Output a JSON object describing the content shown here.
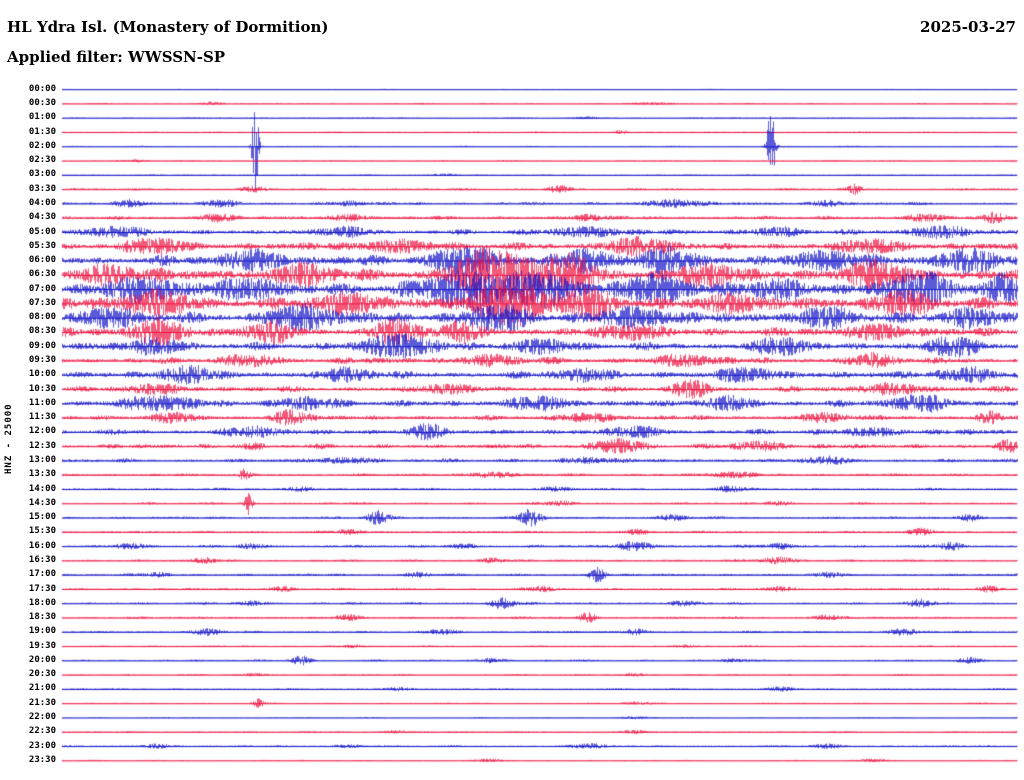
{
  "header": {
    "title": "HL Ydra Isl. (Monastery of Dormition)",
    "date": "2025-03-27",
    "filter_label": "Applied filter: WWSSN-SP"
  },
  "axis": {
    "left_label": "HNZ - 25000"
  },
  "chart_data": {
    "type": "line",
    "subtype": "helicorder-drum-plot",
    "row_minutes": 30,
    "colors": {
      "blue": "#1414c8",
      "red": "#ee1240"
    },
    "rows": [
      {
        "t": "00:00",
        "c": "b",
        "a": 0.35,
        "bursts": []
      },
      {
        "t": "00:30",
        "c": "r",
        "a": 0.6,
        "bursts": [
          [
            0.155,
            0.008,
            1.5
          ],
          [
            0.62,
            0.015,
            1.2
          ]
        ]
      },
      {
        "t": "01:00",
        "c": "b",
        "a": 0.45,
        "bursts": [
          [
            0.55,
            0.01,
            1
          ]
        ]
      },
      {
        "t": "01:30",
        "c": "r",
        "a": 0.5,
        "bursts": [
          [
            0.585,
            0.004,
            2.5
          ]
        ]
      },
      {
        "t": "02:00",
        "c": "b",
        "a": 0.6,
        "bursts": [
          [
            0.202,
            0.0025,
            45
          ],
          [
            0.742,
            0.003,
            38
          ]
        ]
      },
      {
        "t": "02:30",
        "c": "r",
        "a": 0.5,
        "bursts": [
          [
            0.08,
            0.006,
            1.5
          ]
        ]
      },
      {
        "t": "03:00",
        "c": "b",
        "a": 0.55,
        "bursts": [
          [
            0.4,
            0.01,
            1.2
          ]
        ]
      },
      {
        "t": "03:30",
        "c": "r",
        "a": 1.1,
        "bursts": [
          [
            0.2,
            0.01,
            2.5
          ],
          [
            0.52,
            0.008,
            4
          ],
          [
            0.83,
            0.005,
            5
          ]
        ]
      },
      {
        "t": "04:00",
        "c": "b",
        "a": 1.5,
        "bursts": [
          [
            0.07,
            0.01,
            4
          ],
          [
            0.17,
            0.012,
            3.5
          ],
          [
            0.3,
            0.01,
            2.5
          ],
          [
            0.64,
            0.02,
            4
          ],
          [
            0.8,
            0.012,
            3
          ]
        ]
      },
      {
        "t": "04:30",
        "c": "r",
        "a": 1.8,
        "bursts": [
          [
            0.16,
            0.012,
            4
          ],
          [
            0.3,
            0.012,
            3.5
          ],
          [
            0.55,
            0.012,
            3
          ],
          [
            0.9,
            0.012,
            4
          ],
          [
            0.975,
            0.008,
            5
          ]
        ]
      },
      {
        "t": "05:00",
        "c": "b",
        "a": 2.6,
        "bursts": [
          [
            0.05,
            0.02,
            5
          ],
          [
            0.3,
            0.02,
            4
          ],
          [
            0.55,
            0.025,
            5
          ],
          [
            0.75,
            0.02,
            4
          ],
          [
            0.92,
            0.02,
            6
          ]
        ]
      },
      {
        "t": "05:30",
        "c": "r",
        "a": 3.8,
        "bursts": [
          [
            0.1,
            0.02,
            7
          ],
          [
            0.35,
            0.025,
            6
          ],
          [
            0.6,
            0.025,
            7
          ],
          [
            0.85,
            0.02,
            6
          ]
        ]
      },
      {
        "t": "06:00",
        "c": "b",
        "a": 5,
        "bursts": [
          [
            0.2,
            0.02,
            9
          ],
          [
            0.42,
            0.025,
            13
          ],
          [
            0.55,
            0.02,
            10
          ],
          [
            0.63,
            0.018,
            12
          ],
          [
            0.8,
            0.025,
            9
          ],
          [
            0.95,
            0.02,
            11
          ]
        ]
      },
      {
        "t": "06:30",
        "c": "r",
        "a": 6,
        "bursts": [
          [
            0.05,
            0.02,
            9
          ],
          [
            0.25,
            0.02,
            9
          ],
          [
            0.45,
            0.03,
            24
          ],
          [
            0.53,
            0.022,
            18
          ],
          [
            0.68,
            0.02,
            10
          ],
          [
            0.85,
            0.025,
            11
          ]
        ]
      },
      {
        "t": "07:00",
        "c": "b",
        "a": 6,
        "bursts": [
          [
            0.08,
            0.025,
            11
          ],
          [
            0.2,
            0.025,
            9
          ],
          [
            0.42,
            0.03,
            17
          ],
          [
            0.5,
            0.025,
            14
          ],
          [
            0.62,
            0.025,
            13
          ],
          [
            0.75,
            0.02,
            9
          ],
          [
            0.9,
            0.025,
            13
          ],
          [
            0.985,
            0.012,
            15
          ]
        ]
      },
      {
        "t": "07:30",
        "c": "r",
        "a": 5.8,
        "bursts": [
          [
            0.1,
            0.025,
            11
          ],
          [
            0.3,
            0.025,
            9
          ],
          [
            0.47,
            0.025,
            22
          ],
          [
            0.55,
            0.02,
            13
          ],
          [
            0.7,
            0.02,
            9
          ],
          [
            0.88,
            0.02,
            11
          ]
        ]
      },
      {
        "t": "08:00",
        "c": "b",
        "a": 5.2,
        "bursts": [
          [
            0.05,
            0.02,
            9
          ],
          [
            0.25,
            0.025,
            11
          ],
          [
            0.45,
            0.025,
            11
          ],
          [
            0.6,
            0.025,
            9
          ],
          [
            0.8,
            0.02,
            9
          ],
          [
            0.95,
            0.02,
            9
          ]
        ]
      },
      {
        "t": "08:30",
        "c": "r",
        "a": 4.4,
        "bursts": [
          [
            0.1,
            0.018,
            13
          ],
          [
            0.22,
            0.018,
            9
          ],
          [
            0.35,
            0.018,
            11
          ],
          [
            0.42,
            0.015,
            9
          ],
          [
            0.6,
            0.02,
            7
          ],
          [
            0.85,
            0.02,
            7
          ]
        ]
      },
      {
        "t": "09:00",
        "c": "b",
        "a": 3.9,
        "bursts": [
          [
            0.1,
            0.02,
            7
          ],
          [
            0.35,
            0.025,
            11
          ],
          [
            0.5,
            0.02,
            7
          ],
          [
            0.75,
            0.02,
            7
          ],
          [
            0.93,
            0.018,
            9
          ]
        ]
      },
      {
        "t": "09:30",
        "c": "r",
        "a": 3.3,
        "bursts": [
          [
            0.2,
            0.02,
            5
          ],
          [
            0.45,
            0.02,
            5
          ],
          [
            0.65,
            0.02,
            5
          ],
          [
            0.85,
            0.02,
            5
          ]
        ]
      },
      {
        "t": "10:00",
        "c": "b",
        "a": 3.8,
        "bursts": [
          [
            0.13,
            0.02,
            7
          ],
          [
            0.3,
            0.02,
            5
          ],
          [
            0.55,
            0.02,
            5
          ],
          [
            0.72,
            0.02,
            6
          ],
          [
            0.95,
            0.018,
            7
          ]
        ]
      },
      {
        "t": "10:30",
        "c": "r",
        "a": 2.9,
        "bursts": [
          [
            0.1,
            0.02,
            4
          ],
          [
            0.4,
            0.02,
            4
          ],
          [
            0.66,
            0.012,
            9
          ],
          [
            0.87,
            0.02,
            5
          ]
        ]
      },
      {
        "t": "11:00",
        "c": "b",
        "a": 3.7,
        "bursts": [
          [
            0.1,
            0.025,
            6
          ],
          [
            0.25,
            0.02,
            5
          ],
          [
            0.5,
            0.02,
            5
          ],
          [
            0.7,
            0.02,
            5
          ],
          [
            0.9,
            0.02,
            7
          ]
        ]
      },
      {
        "t": "11:30",
        "c": "r",
        "a": 2.5,
        "bursts": [
          [
            0.12,
            0.018,
            4
          ],
          [
            0.24,
            0.012,
            7
          ],
          [
            0.55,
            0.02,
            4
          ],
          [
            0.8,
            0.018,
            4
          ],
          [
            0.97,
            0.01,
            5
          ]
        ]
      },
      {
        "t": "12:00",
        "c": "b",
        "a": 2.9,
        "bursts": [
          [
            0.2,
            0.02,
            4
          ],
          [
            0.38,
            0.012,
            7
          ],
          [
            0.6,
            0.02,
            4
          ],
          [
            0.85,
            0.02,
            4
          ]
        ]
      },
      {
        "t": "12:30",
        "c": "r",
        "a": 2.3,
        "bursts": [
          [
            0.2,
            0.01,
            3
          ],
          [
            0.58,
            0.018,
            7
          ],
          [
            0.73,
            0.018,
            5
          ],
          [
            0.99,
            0.008,
            7
          ]
        ]
      },
      {
        "t": "13:00",
        "c": "b",
        "a": 1.9,
        "bursts": [
          [
            0.3,
            0.02,
            3
          ],
          [
            0.55,
            0.018,
            3
          ],
          [
            0.8,
            0.018,
            3
          ]
        ]
      },
      {
        "t": "13:30",
        "c": "r",
        "a": 1.4,
        "bursts": [
          [
            0.19,
            0.004,
            5
          ],
          [
            0.45,
            0.018,
            2.5
          ],
          [
            0.7,
            0.018,
            2.5
          ]
        ]
      },
      {
        "t": "14:00",
        "c": "b",
        "a": 1.1,
        "bursts": [
          [
            0.25,
            0.01,
            2.5
          ],
          [
            0.52,
            0.01,
            2.5
          ],
          [
            0.7,
            0.01,
            3
          ]
        ]
      },
      {
        "t": "14:30",
        "c": "r",
        "a": 1.1,
        "bursts": [
          [
            0.195,
            0.003,
            11
          ],
          [
            0.52,
            0.01,
            2.5
          ],
          [
            0.75,
            0.01,
            2.5
          ]
        ]
      },
      {
        "t": "15:00",
        "c": "b",
        "a": 1.2,
        "bursts": [
          [
            0.33,
            0.008,
            7
          ],
          [
            0.49,
            0.008,
            9
          ],
          [
            0.64,
            0.01,
            3
          ],
          [
            0.95,
            0.01,
            3.5
          ]
        ]
      },
      {
        "t": "15:30",
        "c": "r",
        "a": 1.1,
        "bursts": [
          [
            0.3,
            0.01,
            2.5
          ],
          [
            0.6,
            0.01,
            2.5
          ],
          [
            0.9,
            0.01,
            3.5
          ]
        ]
      },
      {
        "t": "16:00",
        "c": "b",
        "a": 1.4,
        "bursts": [
          [
            0.07,
            0.01,
            3.5
          ],
          [
            0.2,
            0.01,
            2.5
          ],
          [
            0.42,
            0.01,
            2.5
          ],
          [
            0.6,
            0.013,
            4.5
          ],
          [
            0.75,
            0.01,
            3.5
          ],
          [
            0.93,
            0.01,
            3.5
          ]
        ]
      },
      {
        "t": "16:30",
        "c": "r",
        "a": 1.1,
        "bursts": [
          [
            0.15,
            0.01,
            2.5
          ],
          [
            0.45,
            0.01,
            2.5
          ],
          [
            0.75,
            0.013,
            3.5
          ]
        ]
      },
      {
        "t": "17:00",
        "c": "b",
        "a": 1.2,
        "bursts": [
          [
            0.1,
            0.01,
            2.5
          ],
          [
            0.37,
            0.01,
            2.5
          ],
          [
            0.56,
            0.006,
            8
          ],
          [
            0.8,
            0.01,
            2.5
          ]
        ]
      },
      {
        "t": "17:30",
        "c": "r",
        "a": 1.1,
        "bursts": [
          [
            0.23,
            0.01,
            2.5
          ],
          [
            0.5,
            0.01,
            2.5
          ],
          [
            0.75,
            0.01,
            2.5
          ],
          [
            0.97,
            0.008,
            3.5
          ]
        ]
      },
      {
        "t": "18:00",
        "c": "b",
        "a": 1.2,
        "bursts": [
          [
            0.2,
            0.01,
            2.5
          ],
          [
            0.46,
            0.009,
            6
          ],
          [
            0.65,
            0.01,
            2.5
          ],
          [
            0.9,
            0.01,
            3.5
          ]
        ]
      },
      {
        "t": "18:30",
        "c": "r",
        "a": 1.1,
        "bursts": [
          [
            0.3,
            0.01,
            2.5
          ],
          [
            0.55,
            0.006,
            6
          ],
          [
            0.8,
            0.01,
            2.5
          ]
        ]
      },
      {
        "t": "19:00",
        "c": "b",
        "a": 1.1,
        "bursts": [
          [
            0.15,
            0.01,
            3.5
          ],
          [
            0.4,
            0.01,
            2.5
          ],
          [
            0.6,
            0.01,
            2.5
          ],
          [
            0.88,
            0.01,
            3.5
          ]
        ]
      },
      {
        "t": "19:30",
        "c": "r",
        "a": 0.75,
        "bursts": [
          [
            0.3,
            0.01,
            1.5
          ],
          [
            0.65,
            0.01,
            1.5
          ]
        ]
      },
      {
        "t": "20:00",
        "c": "b",
        "a": 0.95,
        "bursts": [
          [
            0.25,
            0.007,
            5
          ],
          [
            0.45,
            0.01,
            2.5
          ],
          [
            0.7,
            0.01,
            1.8
          ],
          [
            0.95,
            0.01,
            2.5
          ]
        ]
      },
      {
        "t": "20:30",
        "c": "r",
        "a": 0.65,
        "bursts": [
          [
            0.2,
            0.01,
            1.5
          ],
          [
            0.6,
            0.01,
            1.5
          ]
        ]
      },
      {
        "t": "21:00",
        "c": "b",
        "a": 0.75,
        "bursts": [
          [
            0.35,
            0.01,
            1.8
          ],
          [
            0.75,
            0.01,
            2.5
          ]
        ]
      },
      {
        "t": "21:30",
        "c": "r",
        "a": 0.65,
        "bursts": [
          [
            0.205,
            0.004,
            4.5
          ],
          [
            0.6,
            0.01,
            1.5
          ]
        ]
      },
      {
        "t": "22:00",
        "c": "b",
        "a": 0.45,
        "bursts": [
          [
            0.6,
            0.01,
            1.5
          ]
        ]
      },
      {
        "t": "22:30",
        "c": "r",
        "a": 0.6,
        "bursts": [
          [
            0.35,
            0.01,
            1.5
          ],
          [
            0.6,
            0.01,
            1.5
          ]
        ]
      },
      {
        "t": "23:00",
        "c": "b",
        "a": 0.85,
        "bursts": [
          [
            0.1,
            0.01,
            2.5
          ],
          [
            0.3,
            0.01,
            1.8
          ],
          [
            0.55,
            0.013,
            2.5
          ],
          [
            0.8,
            0.01,
            2.5
          ]
        ]
      },
      {
        "t": "23:30",
        "c": "r",
        "a": 0.55,
        "bursts": [
          [
            0.45,
            0.01,
            1.5
          ],
          [
            0.85,
            0.01,
            1.5
          ]
        ]
      }
    ]
  }
}
